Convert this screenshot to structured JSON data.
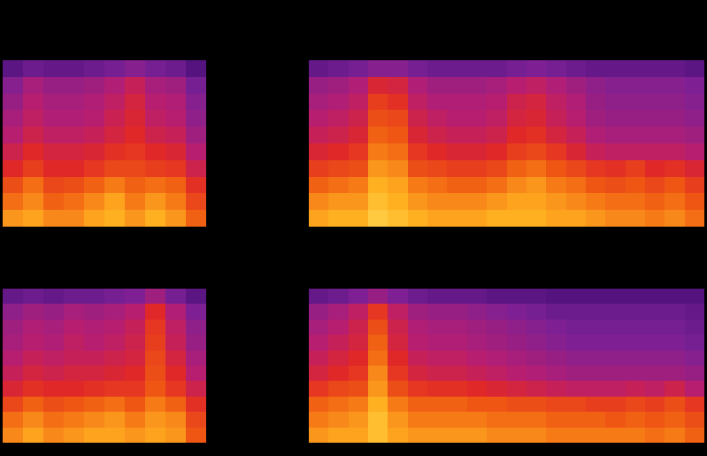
{
  "chart_data": [
    {
      "type": "heatmap",
      "color_range": [
        0,
        100
      ],
      "tick_labels": false,
      "cells": [
        [
          28,
          32,
          30,
          30,
          32,
          34,
          38,
          34,
          32,
          26
        ],
        [
          38,
          46,
          42,
          42,
          44,
          48,
          54,
          46,
          44,
          34
        ],
        [
          42,
          50,
          46,
          46,
          48,
          52,
          58,
          50,
          48,
          38
        ],
        [
          46,
          52,
          48,
          48,
          50,
          55,
          60,
          52,
          50,
          40
        ],
        [
          50,
          56,
          52,
          52,
          54,
          58,
          62,
          56,
          54,
          44
        ],
        [
          56,
          62,
          58,
          58,
          60,
          64,
          66,
          62,
          60,
          50
        ],
        [
          62,
          68,
          62,
          62,
          66,
          70,
          70,
          68,
          66,
          56
        ],
        [
          72,
          78,
          70,
          72,
          76,
          80,
          76,
          78,
          76,
          64
        ],
        [
          78,
          82,
          76,
          78,
          82,
          86,
          80,
          84,
          80,
          70
        ],
        [
          84,
          86,
          82,
          82,
          86,
          88,
          84,
          88,
          84,
          76
        ]
      ]
    },
    {
      "type": "heatmap",
      "color_range": [
        0,
        100
      ],
      "tick_labels": false,
      "cells": [
        [
          30,
          32,
          34,
          38,
          38,
          34,
          32,
          32,
          32,
          32,
          34,
          36,
          34,
          32,
          30,
          30,
          30,
          30,
          30,
          28
        ],
        [
          42,
          44,
          48,
          60,
          58,
          48,
          44,
          44,
          44,
          46,
          50,
          52,
          48,
          44,
          40,
          38,
          38,
          38,
          38,
          36
        ],
        [
          46,
          48,
          52,
          68,
          64,
          52,
          48,
          48,
          48,
          50,
          56,
          58,
          52,
          48,
          42,
          40,
          40,
          40,
          40,
          38
        ],
        [
          50,
          52,
          56,
          72,
          70,
          56,
          52,
          50,
          50,
          52,
          58,
          60,
          54,
          50,
          44,
          42,
          42,
          42,
          42,
          40
        ],
        [
          54,
          56,
          60,
          76,
          74,
          60,
          56,
          54,
          54,
          56,
          62,
          64,
          58,
          54,
          48,
          46,
          46,
          46,
          46,
          44
        ],
        [
          60,
          62,
          66,
          80,
          78,
          66,
          62,
          60,
          60,
          62,
          68,
          70,
          66,
          60,
          54,
          52,
          52,
          52,
          52,
          50
        ],
        [
          68,
          70,
          72,
          84,
          82,
          72,
          70,
          68,
          68,
          70,
          76,
          78,
          74,
          70,
          66,
          64,
          68,
          62,
          64,
          60
        ],
        [
          76,
          78,
          80,
          88,
          86,
          80,
          78,
          76,
          76,
          78,
          82,
          84,
          80,
          78,
          74,
          72,
          74,
          70,
          74,
          68
        ],
        [
          82,
          84,
          84,
          90,
          88,
          84,
          82,
          82,
          82,
          84,
          86,
          86,
          84,
          82,
          80,
          78,
          78,
          76,
          78,
          74
        ],
        [
          86,
          88,
          88,
          92,
          90,
          88,
          86,
          86,
          86,
          88,
          88,
          88,
          86,
          86,
          84,
          82,
          82,
          80,
          82,
          78
        ]
      ]
    },
    {
      "type": "heatmap",
      "color_range": [
        0,
        100
      ],
      "tick_labels": false,
      "cells": [
        [
          30,
          32,
          30,
          32,
          32,
          34,
          36,
          44,
          34,
          28
        ],
        [
          40,
          44,
          42,
          46,
          44,
          46,
          50,
          62,
          48,
          36
        ],
        [
          44,
          48,
          46,
          50,
          48,
          50,
          54,
          66,
          52,
          40
        ],
        [
          46,
          50,
          48,
          52,
          50,
          52,
          56,
          68,
          54,
          42
        ],
        [
          50,
          54,
          52,
          54,
          54,
          56,
          58,
          70,
          58,
          46
        ],
        [
          54,
          58,
          56,
          58,
          58,
          60,
          62,
          72,
          62,
          50
        ],
        [
          60,
          64,
          62,
          62,
          64,
          66,
          66,
          74,
          66,
          56
        ],
        [
          70,
          76,
          72,
          74,
          76,
          78,
          74,
          80,
          76,
          64
        ],
        [
          78,
          82,
          78,
          80,
          82,
          84,
          80,
          84,
          82,
          70
        ],
        [
          82,
          86,
          82,
          84,
          86,
          86,
          84,
          86,
          84,
          74
        ]
      ]
    },
    {
      "type": "heatmap",
      "color_range": [
        0,
        100
      ],
      "tick_labels": false,
      "cells": [
        [
          30,
          32,
          36,
          42,
          36,
          32,
          30,
          30,
          30,
          28,
          28,
          28,
          26,
          26,
          26,
          26,
          26,
          26,
          26,
          26
        ],
        [
          42,
          46,
          52,
          66,
          52,
          44,
          42,
          42,
          40,
          38,
          36,
          34,
          32,
          32,
          32,
          32,
          32,
          32,
          32,
          30
        ],
        [
          46,
          50,
          56,
          72,
          56,
          48,
          46,
          46,
          44,
          42,
          40,
          38,
          36,
          34,
          34,
          34,
          34,
          34,
          34,
          32
        ],
        [
          50,
          54,
          58,
          76,
          58,
          50,
          48,
          48,
          46,
          44,
          42,
          40,
          38,
          36,
          36,
          36,
          36,
          36,
          36,
          34
        ],
        [
          54,
          58,
          62,
          78,
          62,
          54,
          52,
          52,
          50,
          48,
          46,
          44,
          42,
          40,
          40,
          40,
          40,
          40,
          40,
          38
        ],
        [
          58,
          62,
          66,
          82,
          66,
          58,
          56,
          56,
          54,
          52,
          50,
          48,
          46,
          44,
          44,
          44,
          44,
          44,
          44,
          42
        ],
        [
          66,
          70,
          72,
          84,
          72,
          66,
          64,
          64,
          62,
          60,
          58,
          56,
          54,
          52,
          52,
          52,
          54,
          52,
          56,
          50
        ],
        [
          76,
          78,
          80,
          88,
          80,
          76,
          76,
          76,
          74,
          74,
          72,
          72,
          70,
          70,
          68,
          68,
          70,
          68,
          72,
          66
        ],
        [
          80,
          82,
          84,
          90,
          84,
          80,
          80,
          80,
          80,
          78,
          78,
          78,
          76,
          76,
          76,
          74,
          76,
          74,
          76,
          72
        ],
        [
          84,
          86,
          86,
          90,
          86,
          84,
          84,
          84,
          84,
          82,
          82,
          82,
          80,
          80,
          80,
          80,
          80,
          78,
          80,
          76
        ]
      ]
    }
  ]
}
